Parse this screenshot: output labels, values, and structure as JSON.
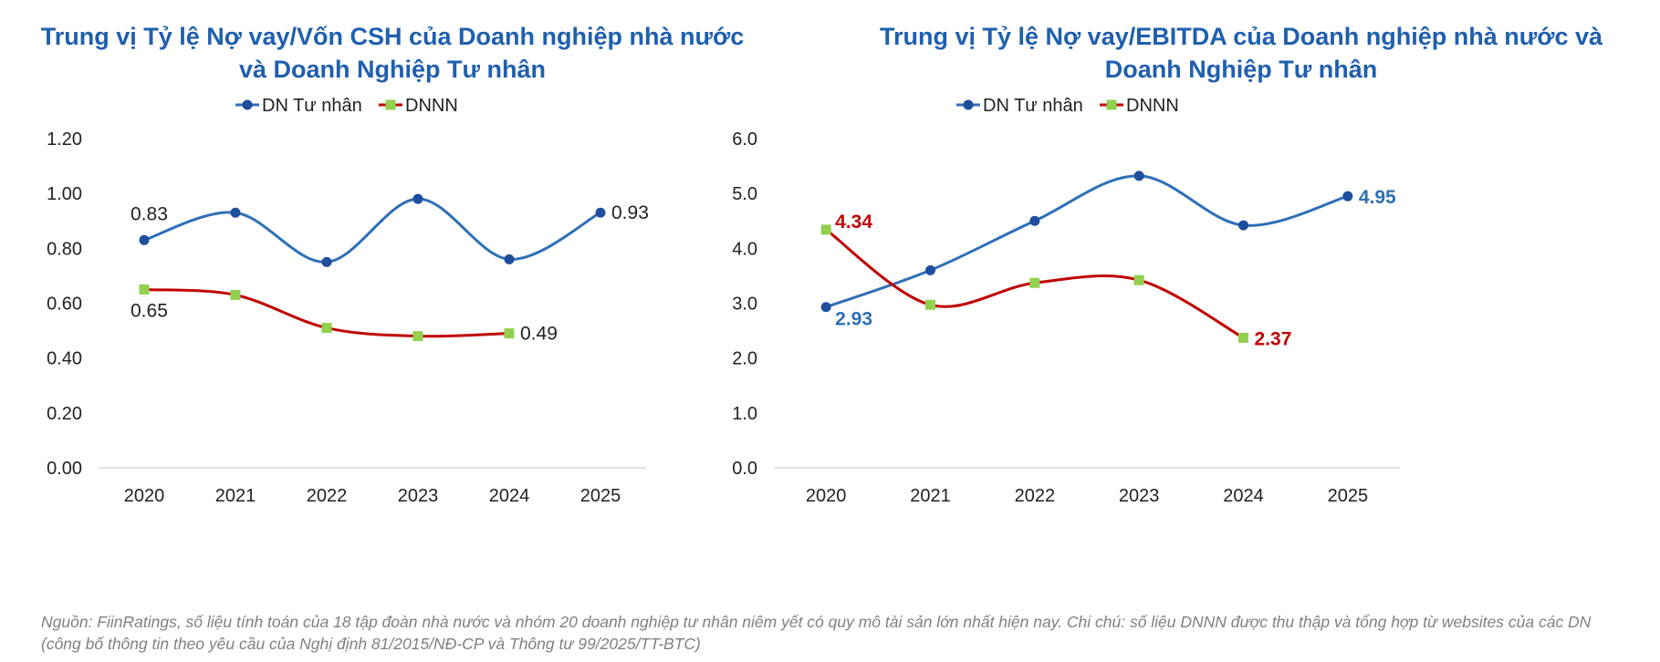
{
  "chart_data": [
    {
      "type": "line",
      "title": "Trung vị Tỷ lệ Nợ vay/Vốn CSH của Doanh nghiệp nhà nước và Doanh Nghiệp Tư nhân",
      "categories": [
        "2020",
        "2021",
        "2022",
        "2023",
        "2024",
        "2025"
      ],
      "y_ticks": [
        "0.00",
        "0.20",
        "0.40",
        "0.60",
        "0.80",
        "1.00",
        "1.20"
      ],
      "ylim": [
        0,
        1.2
      ],
      "legend_position": "top-center",
      "grid": false,
      "series": [
        {
          "name": "DN Tư nhân",
          "color": "#2e6fb7",
          "marker": "circle",
          "values": [
            0.83,
            0.93,
            0.75,
            0.98,
            0.76,
            0.93
          ],
          "labels": [
            "0.83",
            null,
            null,
            null,
            null,
            "0.93"
          ]
        },
        {
          "name": "DNNN",
          "color": "#c00000",
          "marker": "square",
          "values": [
            0.65,
            0.63,
            0.51,
            0.48,
            0.49,
            null
          ],
          "labels": [
            "0.65",
            null,
            null,
            null,
            "0.49",
            null
          ]
        }
      ]
    },
    {
      "type": "line",
      "title": "Trung vị Tỷ lệ Nợ vay/EBITDA của Doanh nghiệp nhà nước và Doanh Nghiệp Tư nhân",
      "categories": [
        "2020",
        "2021",
        "2022",
        "2023",
        "2024",
        "2025"
      ],
      "y_ticks": [
        "0.0",
        "1.0",
        "2.0",
        "3.0",
        "4.0",
        "5.0",
        "6.0"
      ],
      "ylim": [
        0,
        6
      ],
      "legend_position": "top-center",
      "grid": false,
      "series": [
        {
          "name": "DN Tư nhân",
          "color": "#2e6fb7",
          "marker": "circle",
          "values": [
            2.93,
            3.6,
            4.5,
            5.32,
            4.42,
            4.95
          ],
          "labels": [
            "2.93",
            null,
            null,
            null,
            null,
            "4.95"
          ]
        },
        {
          "name": "DNNN",
          "color": "#c00000",
          "marker": "square",
          "values": [
            4.34,
            2.97,
            3.37,
            3.42,
            2.37,
            null
          ],
          "labels": [
            "4.34",
            null,
            null,
            null,
            "2.37",
            null
          ]
        }
      ]
    }
  ],
  "colors": {
    "title": "#1f5fae",
    "private_line": "#2e6fb7",
    "private_marker": "#1f4e9c",
    "soe_line": "#c00000",
    "soe_marker": "#92d050"
  },
  "footnote": "Nguồn: FiinRatings, số liệu tính toán của 18 tập đoàn nhà nước và nhóm 20 doanh nghiệp tư nhân niêm yết có quy mô tài sản lớn nhất hiện nay. Chi chú: số liệu DNNN được thu thập và tổng hợp từ websites của các DN (công bố thông tin theo yêu cầu của Nghị định 81/2015/NĐ-CP và Thông tư 99/2025/TT-BTC)"
}
